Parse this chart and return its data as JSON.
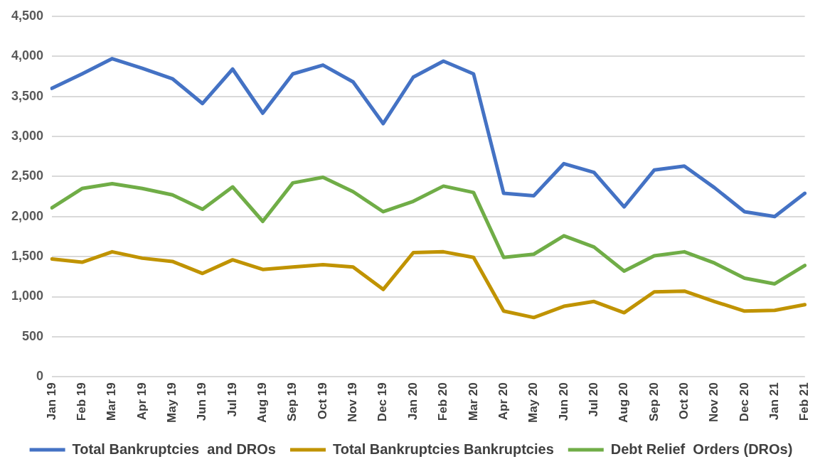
{
  "chart_data": {
    "type": "line",
    "categories": [
      "Jan 19",
      "Feb 19",
      "Mar 19",
      "Apr 19",
      "May 19",
      "Jun 19",
      "Jul 19",
      "Aug 19",
      "Sep 19",
      "Oct 19",
      "Nov 19",
      "Dec 19",
      "Jan 20",
      "Feb 20",
      "Mar 20",
      "Apr 20",
      "May 20",
      "Jun 20",
      "Jul 20",
      "Aug 20",
      "Sep 20",
      "Oct 20",
      "Nov 20",
      "Dec 20",
      "Jan 21",
      "Feb 21"
    ],
    "series": [
      {
        "name": "Total Bankruptcies  and DROs",
        "color": "#4472c4",
        "values": [
          3600,
          3780,
          3970,
          3850,
          3720,
          3410,
          3840,
          3290,
          3780,
          3890,
          3680,
          3160,
          3740,
          3940,
          3780,
          2290,
          2260,
          2660,
          2550,
          2120,
          2580,
          2630,
          2360,
          2060,
          2000,
          2290
        ]
      },
      {
        "name": "Total Bankruptcies Bankruptcies",
        "color": "#c09300",
        "values": [
          1470,
          1430,
          1560,
          1480,
          1440,
          1290,
          1460,
          1340,
          1370,
          1400,
          1370,
          1090,
          1550,
          1560,
          1490,
          820,
          740,
          880,
          940,
          800,
          1060,
          1070,
          940,
          820,
          830,
          900
        ]
      },
      {
        "name": "Debt Relief  Orders (DROs)",
        "color": "#70ad47",
        "values": [
          2110,
          2350,
          2410,
          2350,
          2270,
          2090,
          2370,
          1940,
          2420,
          2490,
          2310,
          2060,
          2190,
          2380,
          2300,
          1490,
          1530,
          1760,
          1620,
          1320,
          1510,
          1560,
          1420,
          1230,
          1160,
          1390
        ]
      }
    ],
    "ylim": [
      0,
      4500
    ],
    "yticks": [
      0,
      500,
      {
        "value": 1000,
        "label": "1,000"
      },
      {
        "value": 1500,
        "label": "1,500"
      },
      {
        "value": 2000,
        "label": "2,000"
      },
      {
        "value": 2500,
        "label": "2,500"
      },
      {
        "value": 3000,
        "label": "3,000"
      },
      {
        "value": 3500,
        "label": "3,500"
      },
      {
        "value": 4000,
        "label": "4,000"
      },
      {
        "value": 4500,
        "label": "4,500"
      }
    ],
    "grid": "y",
    "legend": "bottom",
    "marker": "none",
    "line_style": "solid"
  }
}
